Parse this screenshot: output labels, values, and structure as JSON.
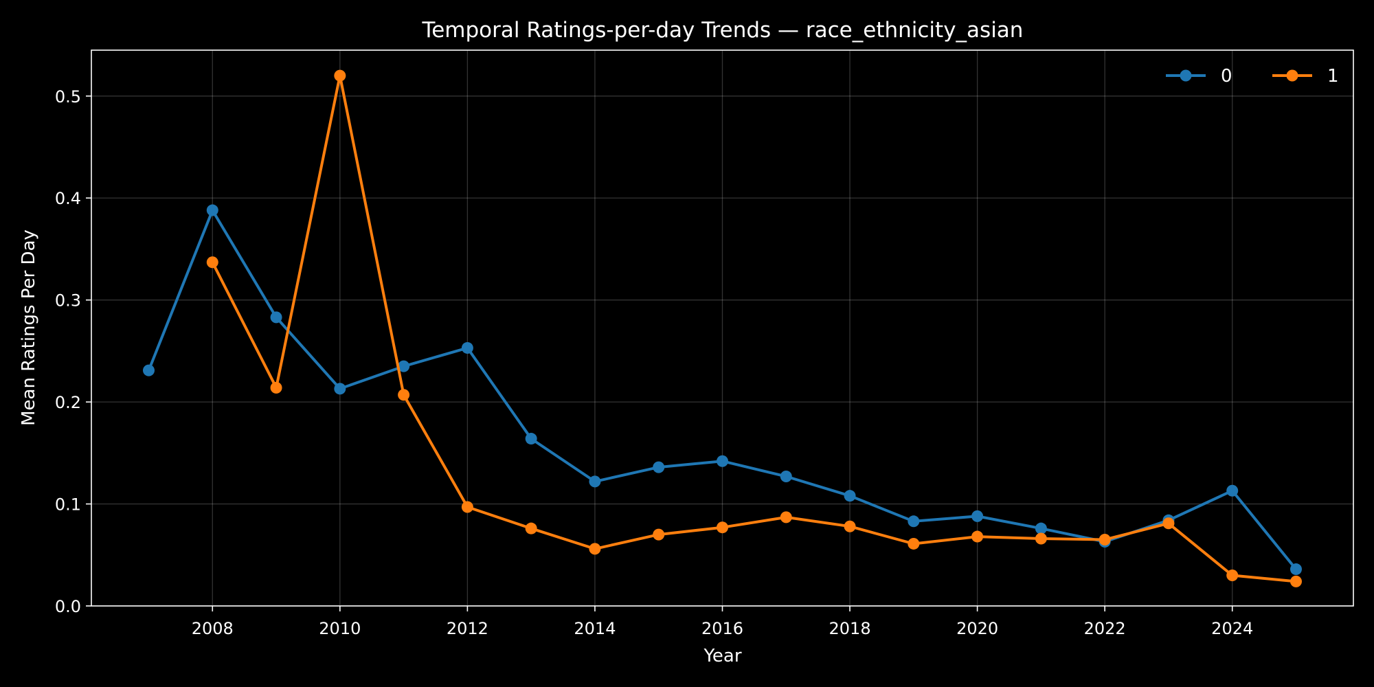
{
  "chart_data": {
    "type": "line",
    "title": "Temporal Ratings-per-day Trends — race_ethnicity_asian",
    "xlabel": "Year",
    "ylabel": "Mean Ratings Per Day",
    "xlim": [
      2006.1,
      2025.9
    ],
    "ylim": [
      0.0,
      0.545
    ],
    "xticks": [
      2008,
      2010,
      2012,
      2014,
      2016,
      2018,
      2020,
      2022,
      2024
    ],
    "xtick_labels": [
      "2008",
      "2010",
      "2012",
      "2014",
      "2016",
      "2018",
      "2020",
      "2022",
      "2024"
    ],
    "yticks": [
      0.0,
      0.1,
      0.2,
      0.3,
      0.4,
      0.5
    ],
    "ytick_labels": [
      "0.0",
      "0.1",
      "0.2",
      "0.3",
      "0.4",
      "0.5"
    ],
    "grid": true,
    "legend_position": "top-right",
    "series": [
      {
        "name": "0",
        "color": "#1f77b4",
        "points": [
          [
            2007,
            0.231
          ],
          [
            2008,
            0.388
          ],
          [
            2009,
            0.283
          ],
          [
            2010,
            0.213
          ],
          [
            2011,
            0.235
          ],
          [
            2012,
            0.253
          ],
          [
            2013,
            0.164
          ],
          [
            2014,
            0.122
          ],
          [
            2015,
            0.136
          ],
          [
            2016,
            0.142
          ],
          [
            2017,
            0.127
          ],
          [
            2018,
            0.108
          ],
          [
            2019,
            0.083
          ],
          [
            2020,
            0.088
          ],
          [
            2021,
            0.076
          ],
          [
            2022,
            0.063
          ],
          [
            2023,
            0.084
          ],
          [
            2024,
            0.113
          ],
          [
            2025,
            0.036
          ]
        ]
      },
      {
        "name": "1",
        "color": "#ff7f0e",
        "points": [
          [
            2008,
            0.337
          ],
          [
            2009,
            0.214
          ],
          [
            2010,
            0.52
          ],
          [
            2011,
            0.207
          ],
          [
            2012,
            0.097
          ],
          [
            2013,
            0.076
          ],
          [
            2014,
            0.056
          ],
          [
            2015,
            0.07
          ],
          [
            2016,
            0.077
          ],
          [
            2017,
            0.087
          ],
          [
            2018,
            0.078
          ],
          [
            2019,
            0.061
          ],
          [
            2020,
            0.068
          ],
          [
            2021,
            0.066
          ],
          [
            2022,
            0.065
          ],
          [
            2023,
            0.081
          ],
          [
            2024,
            0.03
          ],
          [
            2025,
            0.024
          ]
        ]
      }
    ]
  }
}
